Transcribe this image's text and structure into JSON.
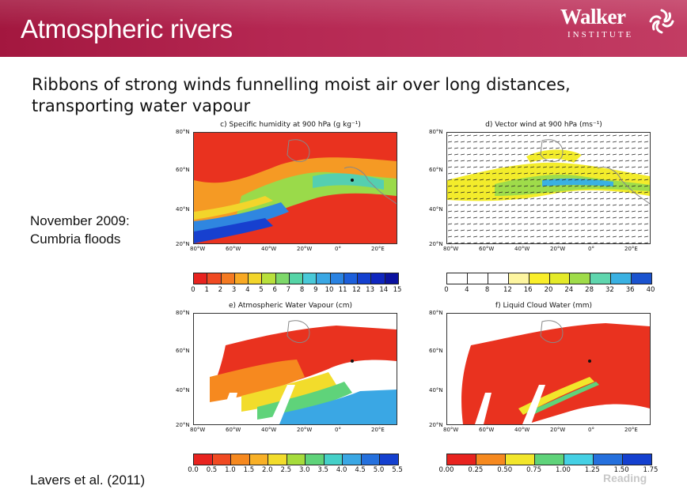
{
  "slide": {
    "title": "Atmospheric rivers",
    "subtitle_line1": "Ribbons of strong winds funnelling moist air over long distances,",
    "subtitle_line2": "transporting water vapour",
    "note_line1": "November 2009:",
    "note_line2": "Cumbria floods",
    "citation": "Lavers et al. (2011)",
    "footer_logo_text": "Reading",
    "banner_color": "#b52752"
  },
  "logo": {
    "word": "Walker",
    "sub": "INSTITUTE"
  },
  "lat_labels": [
    "80°N",
    "60°N",
    "40°N",
    "20°N"
  ],
  "lon_labels": [
    "80°W",
    "60°W",
    "40°W",
    "20°W",
    "0°",
    "20°E"
  ],
  "panels": {
    "c": {
      "title": "c) Specific humidity at 900 hPa (g kg⁻¹)",
      "ticks": [
        "0",
        "1",
        "2",
        "3",
        "4",
        "5",
        "6",
        "7",
        "8",
        "9",
        "10",
        "11",
        "12",
        "13",
        "14",
        "15"
      ],
      "colors": [
        "#e8231f",
        "#f04a22",
        "#f47a22",
        "#f8a924",
        "#f2d52b",
        "#b8e03c",
        "#7dd86a",
        "#55d4a6",
        "#49c9d8",
        "#3aa7e4",
        "#2a83e2",
        "#1c5fdb",
        "#1440cf",
        "#0f26bf",
        "#0b129f"
      ]
    },
    "d": {
      "title": "d) Vector wind at 900 hPa (ms⁻¹)",
      "ticks": [
        "0",
        "4",
        "8",
        "12",
        "16",
        "20",
        "24",
        "28",
        "32",
        "36",
        "40"
      ],
      "colors": [
        "#ffffff",
        "#ffffff",
        "#ffffff",
        "#fdf5a0",
        "#f9ee2a",
        "#e4ea29",
        "#9fdc4a",
        "#5fd6ae",
        "#3ab1e2",
        "#1a53cf"
      ]
    },
    "e": {
      "title": "e) Atmospheric Water Vapour (cm)",
      "ticks": [
        "0.0",
        "0.5",
        "1.0",
        "1.5",
        "2.0",
        "2.5",
        "3.0",
        "3.5",
        "4.0",
        "4.5",
        "5.0",
        "5.5"
      ],
      "colors": [
        "#e8231f",
        "#f04a22",
        "#f6891f",
        "#f8b027",
        "#f2dc2b",
        "#a6dc3c",
        "#5fd37a",
        "#45d0c8",
        "#3aa7e4",
        "#2570dd",
        "#1440cf"
      ]
    },
    "f": {
      "title": "f) Liquid Cloud Water (mm)",
      "ticks": [
        "0.00",
        "0.25",
        "0.50",
        "0.75",
        "1.00",
        "1.25",
        "1.50",
        "1.75"
      ],
      "colors": [
        "#e8231f",
        "#f6891f",
        "#f2e62b",
        "#5fd37a",
        "#45d0e4",
        "#2570dd",
        "#1440cf"
      ]
    }
  }
}
